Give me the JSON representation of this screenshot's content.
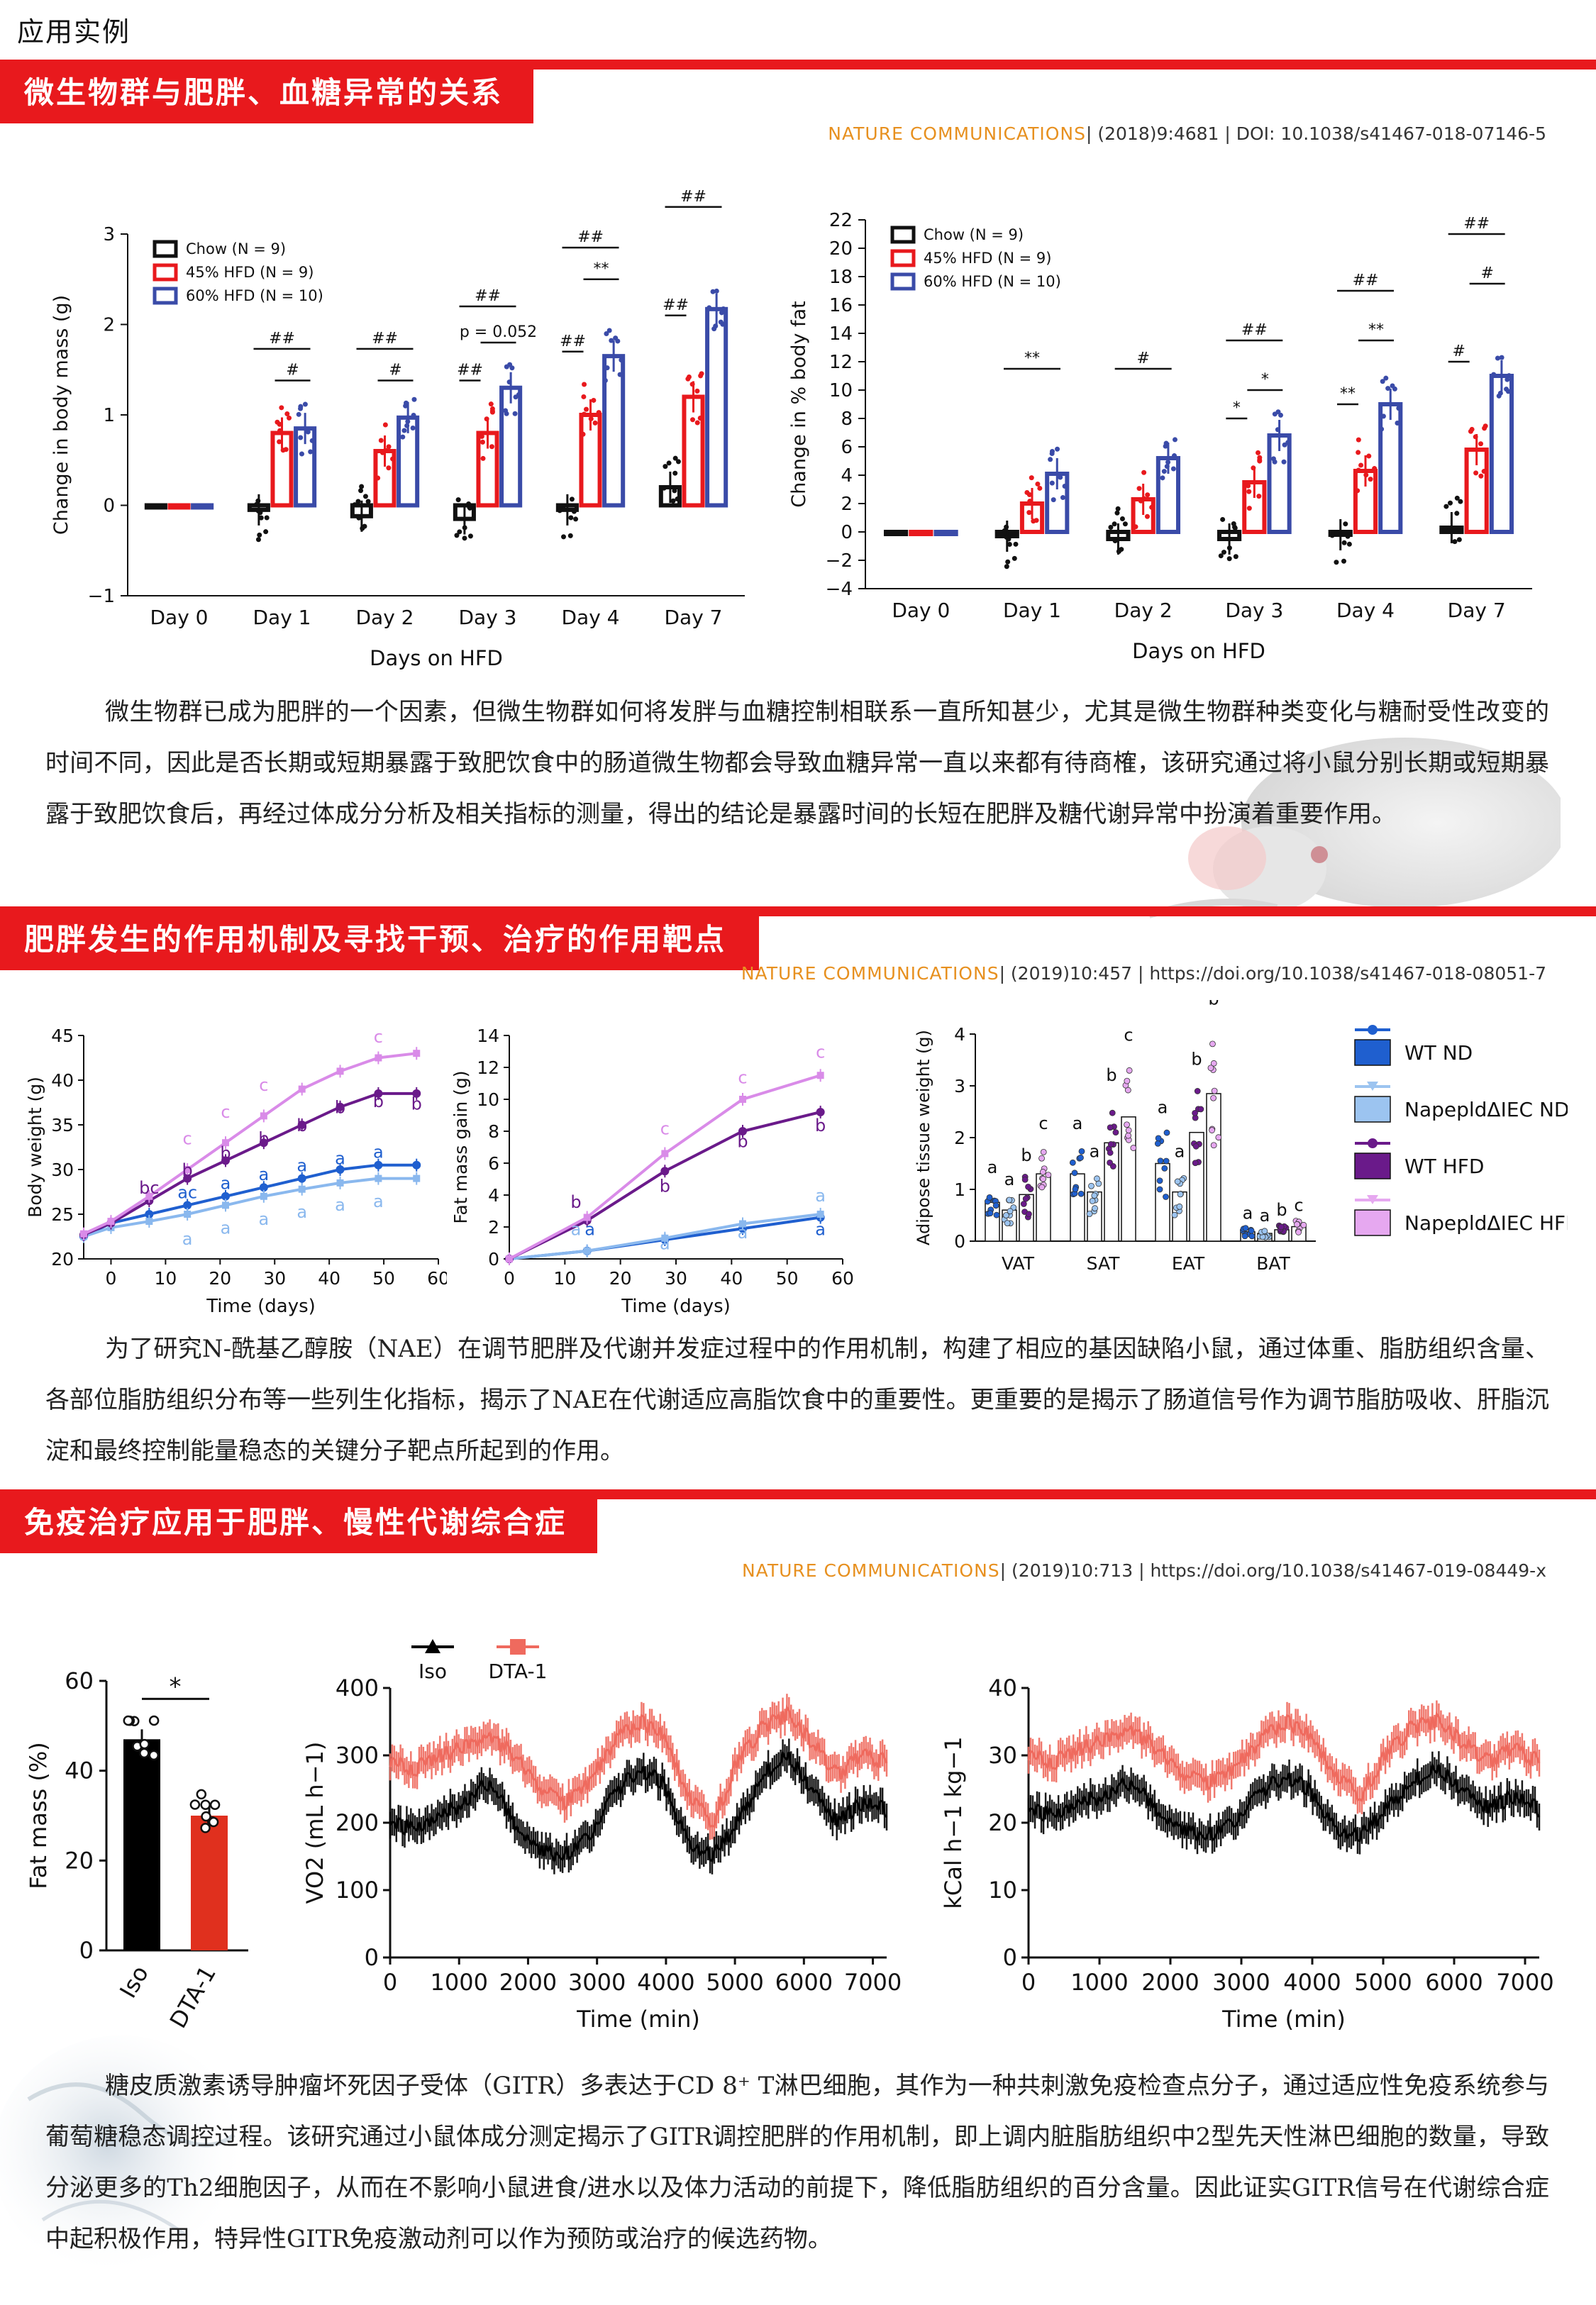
{
  "page_title": "应用实例",
  "colors": {
    "accent_red": "#e8191d",
    "journal_orange": "#e7901f",
    "chow": "#111111",
    "hfd45": "#e8191d",
    "hfd60": "#3a4ba8"
  },
  "sections": [
    {
      "title": "微生物群与肥胖、血糖异常的关系",
      "citation_journal": "NATURE COMMUNICATIONS",
      "citation_rest": "| (2018)9:4681 | DOI: 10.1038/s41467-018-07146-5",
      "paragraph": "微生物群已成为肥胖的一个因素，但微生物群如何将发胖与血糖控制相联系一直所知甚少，尤其是微生物群种类变化与糖耐受性改变的时间不同，因此是否长期或短期暴露于致肥饮食中的肠道微生物都会导致血糖异常一直以来都有待商榷，该研究通过将小鼠分别长期或短期暴露于致肥饮食后，再经过体成分分析及相关指标的测量，得出的结论是暴露时间的长短在肥胖及糖代谢异常中扮演着重要作用。"
    },
    {
      "title": "肥胖发生的作用机制及寻找干预、治疗的作用靶点",
      "citation_journal": "NATURE COMMUNICATIONS",
      "citation_rest": "| (2019)10:457 | https://doi.org/10.1038/s41467-018-08051-7",
      "paragraph": "为了研究N-酰基乙醇胺（NAE）在调节肥胖及代谢并发症过程中的作用机制，构建了相应的基因缺陷小鼠，通过体重、脂肪组织含量、各部位脂肪组织分布等一些列生化指标，揭示了NAE在代谢适应高脂饮食中的重要性。更重要的是揭示了肠道信号作为调节脂肪吸收、肝脂沉淀和最终控制能量稳态的关键分子靶点所起到的作用。"
    },
    {
      "title": "免疫治疗应用于肥胖、慢性代谢综合症",
      "citation_journal": "NATURE COMMUNICATIONS",
      "citation_rest": "| (2019)10:713 | https://doi.org/10.1038/s41467-019-08449-x",
      "paragraph": "糖皮质激素诱导肿瘤坏死因子受体（GITR）多表达于CD 8⁺ T淋巴细胞，其作为一种共刺激免疫检查点分子，通过适应性免疫系统参与葡萄糖稳态调控过程。该研究通过小鼠体成分测定揭示了GITR调控肥胖的作用机制，即上调内脏脂肪组织中2型先天性淋巴细胞的数量，导致分泌更多的Th2细胞因子，从而在不影响小鼠进食/进水以及体力活动的前提下，降低脂肪组织的百分含量。因此证实GITR信号在代谢综合症中起积极作用，特异性GITR免疫激动剂可以作为预防或治疗的候选药物。"
    }
  ],
  "chart_data": [
    {
      "type": "bar",
      "ylabel": "Change in body mass (g)",
      "xlabel": "Days on HFD",
      "ylim": [
        -1,
        3
      ],
      "yticks": [
        "−1",
        "0",
        "1",
        "2",
        "3"
      ],
      "categories": [
        "Day 0",
        "Day 1",
        "Day 2",
        "Day 3",
        "Day 4",
        "Day 7"
      ],
      "series": [
        {
          "name": "Chow (N = 9)",
          "values": [
            0,
            -0.05,
            -0.12,
            -0.15,
            -0.05,
            0.2
          ]
        },
        {
          "name": "45% HFD (N = 9)",
          "values": [
            0,
            0.8,
            0.6,
            0.8,
            1.0,
            1.2
          ]
        },
        {
          "name": "60% HFD (N = 10)",
          "values": [
            0,
            0.85,
            0.97,
            1.3,
            1.65,
            2.17
          ]
        }
      ],
      "legend": "top-left",
      "annotations": [
        "##",
        "#",
        "##",
        "#",
        "##",
        "p = 0.052",
        "##",
        "##",
        "**",
        "##",
        "##",
        "##"
      ]
    },
    {
      "type": "bar",
      "ylabel": "Change in % body fat",
      "xlabel": "Days on HFD",
      "ylim": [
        -4,
        22
      ],
      "yticks": [
        "−4",
        "−2",
        "0",
        "2",
        "4",
        "6",
        "8",
        "10",
        "12",
        "14",
        "16",
        "18",
        "20",
        "22"
      ],
      "categories": [
        "Day 0",
        "Day 1",
        "Day 2",
        "Day 3",
        "Day 4",
        "Day 7"
      ],
      "series": [
        {
          "name": "Chow (N = 9)",
          "values": [
            0,
            -0.3,
            -0.5,
            -0.5,
            -0.2,
            0.3
          ]
        },
        {
          "name": "45% HFD (N = 9)",
          "values": [
            0,
            2.0,
            2.3,
            3.5,
            4.3,
            5.8
          ]
        },
        {
          "name": "60% HFD (N = 10)",
          "values": [
            0,
            4.1,
            5.2,
            6.8,
            9.0,
            11.0
          ]
        }
      ],
      "legend": "top-left",
      "annotations": [
        "**",
        "#",
        "##",
        "*",
        "*",
        "##",
        "**",
        "**",
        "##",
        "#",
        "#"
      ]
    },
    {
      "type": "line",
      "ylabel": "Body weight (g)",
      "xlabel": "Time (days)",
      "ylim": [
        20,
        45
      ],
      "xlim": [
        -5,
        60
      ],
      "yticks": [
        "20",
        "25",
        "30",
        "35",
        "40",
        "45"
      ],
      "xticks": [
        "0",
        "10",
        "20",
        "30",
        "40",
        "50",
        "60"
      ],
      "x": [
        -5,
        0,
        7,
        14,
        21,
        28,
        35,
        42,
        49,
        56
      ],
      "series": [
        {
          "name": "WT ND",
          "values": [
            22.5,
            24,
            25,
            26,
            27,
            28,
            29,
            30,
            30.5,
            30.5
          ]
        },
        {
          "name": "NapepldΔIEC ND",
          "values": [
            22.5,
            23.5,
            24.2,
            25,
            26,
            27,
            27.8,
            28.5,
            29,
            29
          ]
        },
        {
          "name": "WT HFD",
          "values": [
            22.7,
            24,
            26.5,
            29,
            31,
            33,
            35,
            37,
            38.5,
            38.5
          ]
        },
        {
          "name": "NapepldΔIEC HFD",
          "values": [
            22.8,
            24.2,
            27,
            30,
            33,
            36,
            39,
            41,
            42.5,
            43
          ]
        }
      ],
      "annotations": [
        "bc",
        "b",
        "b",
        "b",
        "b",
        "b",
        "b",
        "b",
        "c",
        "c",
        "c",
        "c",
        "ac",
        "a",
        "a",
        "a",
        "a",
        "a",
        "a",
        "a",
        "a",
        "a",
        "a",
        "a"
      ]
    },
    {
      "type": "line",
      "ylabel": "Fat mass gain (g)",
      "xlabel": "Time (days)",
      "ylim": [
        0,
        14
      ],
      "xlim": [
        0,
        60
      ],
      "yticks": [
        "0",
        "2",
        "4",
        "6",
        "8",
        "10",
        "12",
        "14"
      ],
      "xticks": [
        "0",
        "10",
        "20",
        "30",
        "40",
        "50",
        "60"
      ],
      "x": [
        0,
        14,
        28,
        42,
        56
      ],
      "series": [
        {
          "name": "WT ND",
          "values": [
            0,
            0.5,
            1.2,
            1.9,
            2.6
          ]
        },
        {
          "name": "NapepldΔIEC ND",
          "values": [
            0,
            0.5,
            1.3,
            2.2,
            2.8
          ]
        },
        {
          "name": "WT HFD",
          "values": [
            0,
            2.4,
            5.5,
            8.0,
            9.2
          ]
        },
        {
          "name": "NapepldΔIEC HFD",
          "values": [
            0,
            2.6,
            6.6,
            10.0,
            11.5
          ]
        }
      ],
      "annotations": [
        "b",
        "b",
        "b",
        "b",
        "a",
        "a",
        "a",
        "a",
        "a",
        "a",
        "c",
        "c",
        "c"
      ]
    },
    {
      "type": "bar",
      "ylabel": "Adipose tissue weight (g)",
      "ylim": [
        0,
        4
      ],
      "yticks": [
        "0",
        "1",
        "2",
        "3",
        "4"
      ],
      "categories": [
        "VAT",
        "SAT",
        "EAT",
        "BAT"
      ],
      "series": [
        {
          "name": "WT ND",
          "values": [
            0.75,
            1.3,
            1.5,
            0.18
          ]
        },
        {
          "name": "NapepldΔIEC ND",
          "values": [
            0.6,
            0.95,
            0.95,
            0.15
          ]
        },
        {
          "name": "WT HFD",
          "values": [
            0.9,
            1.9,
            2.1,
            0.22
          ]
        },
        {
          "name": "NapepldΔIEC HFD",
          "values": [
            1.3,
            2.4,
            2.85,
            0.28
          ]
        }
      ],
      "legend": "right",
      "annotations": [
        "a",
        "a",
        "b",
        "c",
        "a",
        "a",
        "b",
        "c",
        "a",
        "a",
        "b",
        "b",
        "a",
        "a",
        "b",
        "c"
      ]
    },
    {
      "type": "bar",
      "ylabel": "Fat mass (%)",
      "ylim": [
        0,
        60
      ],
      "yticks": [
        "0",
        "20",
        "40",
        "60"
      ],
      "categories": [
        "Iso",
        "DTA-1"
      ],
      "values": [
        47,
        30
      ],
      "annotations": [
        "*"
      ]
    },
    {
      "type": "line",
      "ylabel": "VO2 (mL h−1)",
      "xlabel": "Time (min)",
      "ylim": [
        0,
        400
      ],
      "xlim": [
        0,
        7200
      ],
      "yticks": [
        "0",
        "100",
        "200",
        "300",
        "400"
      ],
      "xticks": [
        "0",
        "1000",
        "2000",
        "3000",
        "4000",
        "5000",
        "6000",
        "7000"
      ],
      "series": [
        {
          "name": "Iso",
          "values": [
            200,
            190,
            210,
            230,
            260,
            200,
            160,
            150,
            180,
            240,
            280,
            260,
            170,
            150,
            200,
            270,
            300,
            250,
            200,
            230,
            220
          ]
        },
        {
          "name": "DTA-1",
          "values": [
            290,
            280,
            300,
            310,
            330,
            300,
            250,
            230,
            260,
            320,
            350,
            330,
            240,
            200,
            290,
            340,
            360,
            320,
            270,
            300,
            290
          ]
        }
      ],
      "legend": "top"
    },
    {
      "type": "line",
      "ylabel": "kCal h−1 kg−1",
      "xlabel": "Time (min)",
      "ylim": [
        0,
        40
      ],
      "xlim": [
        0,
        7200
      ],
      "yticks": [
        "0",
        "10",
        "20",
        "30",
        "40"
      ],
      "xticks": [
        "0",
        "1000",
        "2000",
        "3000",
        "4000",
        "5000",
        "6000",
        "7000"
      ],
      "series": [
        {
          "name": "Iso",
          "values": [
            22,
            21,
            23,
            24,
            26,
            22,
            19,
            18,
            20,
            24,
            27,
            25,
            19,
            18,
            22,
            26,
            28,
            25,
            22,
            24,
            22
          ]
        },
        {
          "name": "DTA-1",
          "values": [
            30,
            29,
            31,
            32,
            34,
            31,
            27,
            26,
            28,
            32,
            35,
            33,
            27,
            24,
            30,
            34,
            35,
            32,
            29,
            31,
            29
          ]
        }
      ]
    }
  ]
}
